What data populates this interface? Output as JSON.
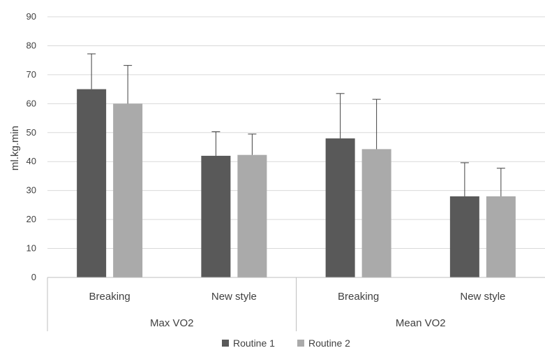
{
  "chart_data": {
    "type": "bar",
    "ylabel": "ml.kg.min",
    "ylim": [
      0,
      90
    ],
    "y_ticks": [
      0,
      10,
      20,
      30,
      40,
      50,
      60,
      70,
      80,
      90
    ],
    "grid": true,
    "legend_position": "bottom",
    "groups": [
      {
        "label": "Max VO2",
        "categories": [
          "Breaking",
          "New style"
        ]
      },
      {
        "label": "Mean VO2",
        "categories": [
          "Breaking",
          "New style"
        ]
      }
    ],
    "categories": [
      "Breaking",
      "New style",
      "Breaking",
      "New style"
    ],
    "series": [
      {
        "name": "Routine 1",
        "color": "#595959",
        "values": [
          65,
          42,
          48,
          28
        ],
        "error": [
          12.2,
          8.3,
          15.5,
          11.6
        ]
      },
      {
        "name": "Routine 2",
        "color": "#aaaaaa",
        "values": [
          60,
          42.3,
          44.3,
          28
        ],
        "error": [
          13.2,
          7.2,
          17.2,
          9.7
        ]
      }
    ]
  }
}
